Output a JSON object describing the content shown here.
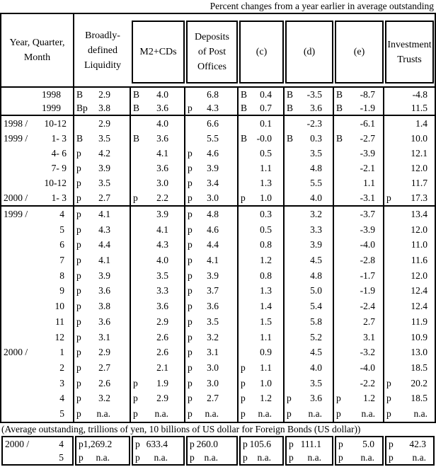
{
  "caption": "Percent changes from a year earlier in average outstanding",
  "units_note": "(Average outstanding, trillions of yen, 10 billions of US dollar for Foreign Bonds (US dollar))",
  "header": {
    "year_quarter_month": "Year, Quarter,\nMonth",
    "columns": [
      "Broadly-\ndefined\nLiquidity",
      "M2+CDs",
      "Deposits\nof Post\nOffices",
      "(c)",
      "(d)",
      "(e)",
      "Investment\nTrusts"
    ]
  },
  "column_keys": [
    "broadly-defined-liquidity",
    "m2-cds",
    "deposits-of-post-offices",
    "col-c",
    "col-d",
    "col-e",
    "investment-trusts"
  ],
  "sections": {
    "annual": [
      {
        "left": "",
        "period": "1998",
        "type": "year",
        "cells": [
          [
            "B",
            "2.9"
          ],
          [
            "B",
            "4.0"
          ],
          [
            "",
            "6.8"
          ],
          [
            "B",
            "0.4"
          ],
          [
            "B",
            "-3.5"
          ],
          [
            "B",
            "-8.7"
          ],
          [
            "",
            "-4.8"
          ]
        ]
      },
      {
        "left": "",
        "period": "1999",
        "type": "year",
        "cells": [
          [
            "Bp",
            "3.8"
          ],
          [
            "B",
            "3.6"
          ],
          [
            "p",
            "4.3"
          ],
          [
            "B",
            "0.7"
          ],
          [
            "B",
            "3.6"
          ],
          [
            "B",
            "-1.9"
          ],
          [
            "",
            "11.5"
          ]
        ]
      }
    ],
    "quarterly": [
      {
        "left": "1998 /",
        "period": "10-12",
        "type": "quarter",
        "cells": [
          [
            "",
            "2.9"
          ],
          [
            "",
            "4.0"
          ],
          [
            "",
            "6.6"
          ],
          [
            "",
            "0.1"
          ],
          [
            "",
            "-2.3"
          ],
          [
            "",
            "-6.1"
          ],
          [
            "",
            "1.4"
          ]
        ]
      },
      {
        "left": "1999 /",
        "period": "1- 3",
        "type": "quarter",
        "cells": [
          [
            "B",
            "3.5"
          ],
          [
            "B",
            "3.6"
          ],
          [
            "",
            "5.5"
          ],
          [
            "B",
            "-0.0"
          ],
          [
            "B",
            "0.3"
          ],
          [
            "B",
            "-2.7"
          ],
          [
            "",
            "10.0"
          ]
        ]
      },
      {
        "left": "",
        "period": "4- 6",
        "type": "quarter",
        "cells": [
          [
            "p",
            "4.2"
          ],
          [
            "",
            "4.1"
          ],
          [
            "p",
            "4.6"
          ],
          [
            "",
            "0.5"
          ],
          [
            "",
            "3.5"
          ],
          [
            "",
            "-3.9"
          ],
          [
            "",
            "12.1"
          ]
        ]
      },
      {
        "left": "",
        "period": "7- 9",
        "type": "quarter",
        "cells": [
          [
            "p",
            "3.9"
          ],
          [
            "",
            "3.6"
          ],
          [
            "p",
            "3.9"
          ],
          [
            "",
            "1.1"
          ],
          [
            "",
            "4.8"
          ],
          [
            "",
            "-2.1"
          ],
          [
            "",
            "12.0"
          ]
        ]
      },
      {
        "left": "",
        "period": "10-12",
        "type": "quarter",
        "cells": [
          [
            "p",
            "3.5"
          ],
          [
            "",
            "3.0"
          ],
          [
            "p",
            "3.4"
          ],
          [
            "",
            "1.3"
          ],
          [
            "",
            "5.5"
          ],
          [
            "",
            "1.1"
          ],
          [
            "",
            "11.7"
          ]
        ]
      },
      {
        "left": "2000 /",
        "period": "1- 3",
        "type": "quarter",
        "cells": [
          [
            "p",
            "2.7"
          ],
          [
            "p",
            "2.2"
          ],
          [
            "p",
            "3.0"
          ],
          [
            "p",
            "1.0"
          ],
          [
            "",
            "4.0"
          ],
          [
            "",
            "-3.1"
          ],
          [
            "p",
            "17.3"
          ]
        ]
      }
    ],
    "monthly": [
      {
        "left": "1999 /",
        "period": "4",
        "type": "month",
        "cells": [
          [
            "p",
            "4.1"
          ],
          [
            "",
            "3.9"
          ],
          [
            "p",
            "4.8"
          ],
          [
            "",
            "0.3"
          ],
          [
            "",
            "3.2"
          ],
          [
            "",
            "-3.7"
          ],
          [
            "",
            "13.4"
          ]
        ]
      },
      {
        "left": "",
        "period": "5",
        "type": "month",
        "cells": [
          [
            "p",
            "4.3"
          ],
          [
            "",
            "4.1"
          ],
          [
            "p",
            "4.6"
          ],
          [
            "",
            "0.5"
          ],
          [
            "",
            "3.3"
          ],
          [
            "",
            "-3.9"
          ],
          [
            "",
            "12.0"
          ]
        ]
      },
      {
        "left": "",
        "period": "6",
        "type": "month",
        "cells": [
          [
            "p",
            "4.4"
          ],
          [
            "",
            "4.3"
          ],
          [
            "p",
            "4.4"
          ],
          [
            "",
            "0.8"
          ],
          [
            "",
            "3.9"
          ],
          [
            "",
            "-4.0"
          ],
          [
            "",
            "11.0"
          ]
        ]
      },
      {
        "left": "",
        "period": "7",
        "type": "month",
        "cells": [
          [
            "p",
            "4.1"
          ],
          [
            "",
            "4.0"
          ],
          [
            "p",
            "4.1"
          ],
          [
            "",
            "1.2"
          ],
          [
            "",
            "4.5"
          ],
          [
            "",
            "-2.8"
          ],
          [
            "",
            "11.6"
          ]
        ]
      },
      {
        "left": "",
        "period": "8",
        "type": "month",
        "cells": [
          [
            "p",
            "3.9"
          ],
          [
            "",
            "3.5"
          ],
          [
            "p",
            "3.9"
          ],
          [
            "",
            "0.8"
          ],
          [
            "",
            "4.8"
          ],
          [
            "",
            "-1.7"
          ],
          [
            "",
            "12.0"
          ]
        ]
      },
      {
        "left": "",
        "period": "9",
        "type": "month",
        "cells": [
          [
            "p",
            "3.6"
          ],
          [
            "",
            "3.3"
          ],
          [
            "p",
            "3.7"
          ],
          [
            "",
            "1.3"
          ],
          [
            "",
            "5.0"
          ],
          [
            "",
            "-1.9"
          ],
          [
            "",
            "12.4"
          ]
        ]
      },
      {
        "left": "",
        "period": "10",
        "type": "month",
        "cells": [
          [
            "p",
            "3.8"
          ],
          [
            "",
            "3.6"
          ],
          [
            "p",
            "3.6"
          ],
          [
            "",
            "1.4"
          ],
          [
            "",
            "5.4"
          ],
          [
            "",
            "-2.4"
          ],
          [
            "",
            "12.4"
          ]
        ]
      },
      {
        "left": "",
        "period": "11",
        "type": "month",
        "cells": [
          [
            "p",
            "3.6"
          ],
          [
            "",
            "2.9"
          ],
          [
            "p",
            "3.5"
          ],
          [
            "",
            "1.5"
          ],
          [
            "",
            "5.8"
          ],
          [
            "",
            "2.7"
          ],
          [
            "",
            "11.9"
          ]
        ]
      },
      {
        "left": "",
        "period": "12",
        "type": "month",
        "cells": [
          [
            "p",
            "3.1"
          ],
          [
            "",
            "2.6"
          ],
          [
            "p",
            "3.2"
          ],
          [
            "",
            "1.1"
          ],
          [
            "",
            "5.2"
          ],
          [
            "",
            "3.1"
          ],
          [
            "",
            "10.9"
          ]
        ]
      },
      {
        "left": "2000 /",
        "period": "1",
        "type": "month",
        "cells": [
          [
            "p",
            "2.9"
          ],
          [
            "",
            "2.6"
          ],
          [
            "p",
            "3.1"
          ],
          [
            "",
            "0.9"
          ],
          [
            "",
            "4.5"
          ],
          [
            "",
            "-3.2"
          ],
          [
            "",
            "13.0"
          ]
        ]
      },
      {
        "left": "",
        "period": "2",
        "type": "month",
        "cells": [
          [
            "p",
            "2.7"
          ],
          [
            "",
            "2.1"
          ],
          [
            "p",
            "3.0"
          ],
          [
            "p",
            "1.1"
          ],
          [
            "",
            "4.0"
          ],
          [
            "",
            "-4.0"
          ],
          [
            "",
            "18.5"
          ]
        ]
      },
      {
        "left": "",
        "period": "3",
        "type": "month",
        "cells": [
          [
            "p",
            "2.6"
          ],
          [
            "p",
            "1.9"
          ],
          [
            "p",
            "3.0"
          ],
          [
            "p",
            "1.0"
          ],
          [
            "",
            "3.5"
          ],
          [
            "",
            "-2.2"
          ],
          [
            "p",
            "20.2"
          ]
        ]
      },
      {
        "left": "",
        "period": "4",
        "type": "month",
        "cells": [
          [
            "p",
            "3.2"
          ],
          [
            "p",
            "2.9"
          ],
          [
            "p",
            "2.7"
          ],
          [
            "p",
            "1.2"
          ],
          [
            "p",
            "3.6"
          ],
          [
            "p",
            "1.2"
          ],
          [
            "p",
            "18.5"
          ]
        ]
      },
      {
        "left": "",
        "period": "5",
        "type": "month",
        "cells": [
          [
            "p",
            "n.a."
          ],
          [
            "p",
            "n.a."
          ],
          [
            "p",
            "n.a."
          ],
          [
            "p",
            "n.a."
          ],
          [
            "p",
            "n.a."
          ],
          [
            "p",
            "n.a."
          ],
          [
            "p",
            "n.a."
          ]
        ]
      }
    ]
  },
  "bottom": [
    {
      "left": "2000 /",
      "period": "4",
      "cells": [
        [
          "p",
          "1,269.2"
        ],
        [
          "p",
          "633.4"
        ],
        [
          "p",
          "260.0"
        ],
        [
          "p",
          "105.6"
        ],
        [
          "p",
          "111.1"
        ],
        [
          "p",
          "5.0"
        ],
        [
          "p",
          "42.3"
        ]
      ]
    },
    {
      "left": "",
      "period": "5",
      "cells": [
        [
          "p",
          "n.a."
        ],
        [
          "p",
          "n.a."
        ],
        [
          "p",
          "n.a."
        ],
        [
          "p",
          "n.a."
        ],
        [
          "p",
          "n.a."
        ],
        [
          "p",
          "n.a."
        ],
        [
          "p",
          "n.a."
        ]
      ]
    }
  ]
}
